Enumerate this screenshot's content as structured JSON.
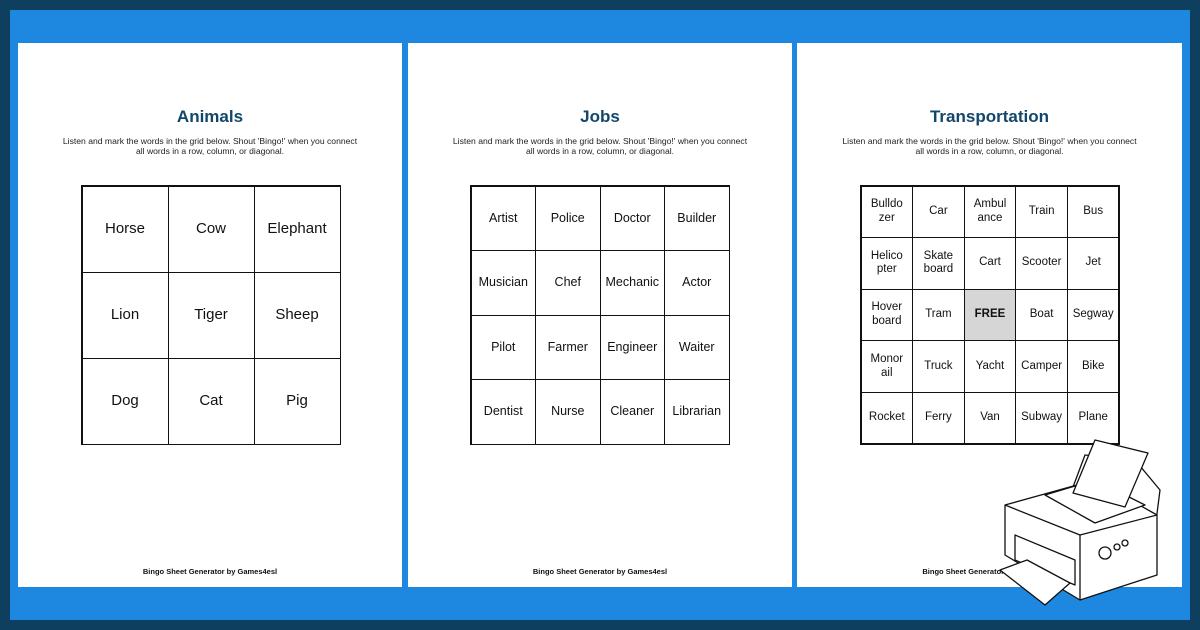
{
  "instructions": "Listen and mark the words in the grid below. Shout 'Bingo!' when you connect all words in a row, column, or diagonal.",
  "footer": "Bingo Sheet Generator by Games4esl",
  "colors": {
    "frame": "#0e3f5f",
    "background": "#1e88e0",
    "title": "#12476b",
    "free_cell": "#d6d6d6"
  },
  "sheets": [
    {
      "title": "Animals",
      "size": 3,
      "words": [
        "Horse",
        "Cow",
        "Elephant",
        "Lion",
        "Tiger",
        "Sheep",
        "Dog",
        "Cat",
        "Pig"
      ]
    },
    {
      "title": "Jobs",
      "size": 4,
      "words": [
        "Artist",
        "Police",
        "Doctor",
        "Builder",
        "Musician",
        "Chef",
        "Mechanic",
        "Actor",
        "Pilot",
        "Farmer",
        "Engineer",
        "Waiter",
        "Dentist",
        "Nurse",
        "Cleaner",
        "Librarian"
      ]
    },
    {
      "title": "Transportation",
      "size": 5,
      "words": [
        "Bulldozer",
        "Car",
        "Ambulance",
        "Train",
        "Bus",
        "Helicopter",
        "Skateboard",
        "Cart",
        "Scooter",
        "Jet",
        "Hoverboard",
        "Tram",
        "FREE",
        "Boat",
        "Segway",
        "Monorail",
        "Truck",
        "Yacht",
        "Camper",
        "Bike",
        "Rocket",
        "Ferry",
        "Van",
        "Subway",
        "Plane"
      ]
    }
  ],
  "decoration": {
    "icon": "printer-icon"
  }
}
